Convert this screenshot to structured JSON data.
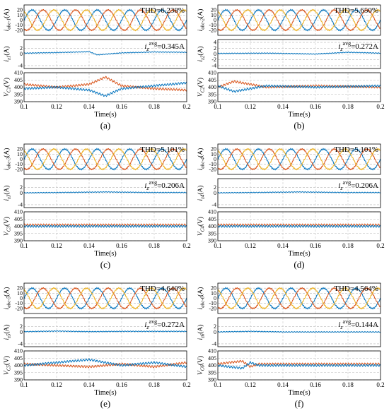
{
  "chart_data": [
    {
      "panel_label": "(a)",
      "type": "line",
      "x_axis": {
        "label": "Time(s)",
        "range": [
          0.1,
          0.2
        ],
        "ticks": [
          "0.1",
          "0.12",
          "0.14",
          "0.16",
          "0.18",
          "0.2"
        ]
      },
      "subplots": [
        {
          "ylabel": "i_abc-1(A)",
          "ylabel_main": "i",
          "ylabel_sub": "abc-1",
          "ylabel_unit": "(A)",
          "ylim": [
            -30,
            30
          ],
          "yticks": [
            -20,
            -10,
            0,
            10,
            20
          ],
          "annotation": "THD=6.238%",
          "series": [
            {
              "color": "#0072BD",
              "amplitude": 20,
              "frequency_hz": 50,
              "phase_deg": 0
            },
            {
              "color": "#D95319",
              "amplitude": 20,
              "frequency_hz": 50,
              "phase_deg": -120
            },
            {
              "color": "#EDB120",
              "amplitude": 20,
              "frequency_hz": 50,
              "phase_deg": 120
            }
          ]
        },
        {
          "ylabel": "i_z1(A)",
          "ylabel_main": "i",
          "ylabel_sub": "z1",
          "ylabel_unit": "(A)",
          "ylim": [
            -5,
            5
          ],
          "yticks": [
            -4,
            0,
            2
          ],
          "annotation_main": "i",
          "annotation_sub": "z",
          "annotation_sup": "avg",
          "annotation_value": "=0.345A",
          "series": [
            {
              "color": "#0072BD",
              "x": [
                0.1,
                0.12,
                0.14,
                0.145,
                0.16,
                0.18,
                0.2
              ],
              "y": [
                0.3,
                0.5,
                0.8,
                -0.3,
                0.4,
                0.7,
                0.6
              ]
            }
          ]
        },
        {
          "ylabel": "V_C1(V)",
          "ylabel_main": "V",
          "ylabel_sub": "C1",
          "ylabel_unit": "(V)",
          "ylim": [
            390,
            410
          ],
          "yticks": [
            390,
            395,
            400,
            405,
            410
          ],
          "series": [
            {
              "color": "#D95319",
              "x": [
                0.1,
                0.12,
                0.14,
                0.15,
                0.16,
                0.18,
                0.2
              ],
              "y": [
                402,
                400,
                402,
                407,
                401,
                399,
                398
              ]
            },
            {
              "color": "#0072BD",
              "x": [
                0.1,
                0.12,
                0.14,
                0.15,
                0.16,
                0.18,
                0.2
              ],
              "y": [
                399,
                400,
                398,
                394,
                399,
                401,
                403
              ]
            }
          ]
        }
      ]
    },
    {
      "panel_label": "(b)",
      "type": "line",
      "x_axis": {
        "label": "Time(s)",
        "range": [
          0.1,
          0.2
        ],
        "ticks": [
          "0.1",
          "0.12",
          "0.14",
          "0.16",
          "0.18",
          "0.2"
        ]
      },
      "subplots": [
        {
          "ylabel": "i_abc-2(A)",
          "ylabel_main": "i",
          "ylabel_sub": "abc-2",
          "ylabel_unit": "(A)",
          "ylim": [
            -30,
            30
          ],
          "yticks": [
            -20,
            -10,
            0,
            10,
            20
          ],
          "annotation": "THD=5.650%",
          "series": [
            {
              "color": "#0072BD",
              "amplitude": 20,
              "frequency_hz": 50,
              "phase_deg": 0
            },
            {
              "color": "#D95319",
              "amplitude": 20,
              "frequency_hz": 50,
              "phase_deg": -120
            },
            {
              "color": "#EDB120",
              "amplitude": 20,
              "frequency_hz": 50,
              "phase_deg": 120
            }
          ]
        },
        {
          "ylabel": "i_z2(A)",
          "ylabel_main": "i",
          "ylabel_sub": "z2",
          "ylabel_unit": "(A)",
          "ylim": [
            -5,
            5
          ],
          "yticks": [
            -4,
            -2,
            0,
            2,
            4
          ],
          "annotation_main": "i",
          "annotation_sub": "z",
          "annotation_sup": "avg",
          "annotation_value": "=0.272A",
          "series": [
            {
              "color": "#0072BD",
              "x": [
                0.1,
                0.13,
                0.16,
                0.18,
                0.2
              ],
              "y": [
                0.2,
                0.3,
                0.0,
                0.6,
                0.3
              ]
            }
          ]
        },
        {
          "ylabel": "V_C2(V)",
          "ylabel_main": "V",
          "ylabel_sub": "C2",
          "ylabel_unit": "(V)",
          "ylim": [
            390,
            410
          ],
          "yticks": [
            390,
            395,
            400,
            405,
            410
          ],
          "series": [
            {
              "color": "#D95319",
              "x": [
                0.1,
                0.11,
                0.13,
                0.16,
                0.2
              ],
              "y": [
                400,
                404,
                400,
                401,
                400
              ]
            },
            {
              "color": "#0072BD",
              "x": [
                0.1,
                0.11,
                0.13,
                0.16,
                0.2
              ],
              "y": [
                401,
                397,
                401,
                400,
                401
              ]
            }
          ]
        }
      ]
    },
    {
      "panel_label": "(c)",
      "type": "line",
      "x_axis": {
        "label": "Time(s)",
        "range": [
          0.1,
          0.2
        ],
        "ticks": [
          "0.1",
          "0.12",
          "0.14",
          "0.16",
          "0.18",
          "0.2"
        ]
      },
      "subplots": [
        {
          "ylabel": "i_abc-3(A)",
          "ylabel_main": "i",
          "ylabel_sub": "abc-3",
          "ylabel_unit": "(A)",
          "ylim": [
            -30,
            30
          ],
          "yticks": [
            -20,
            -10,
            0,
            10,
            20
          ],
          "annotation": "THD=5.101%",
          "series": [
            {
              "color": "#0072BD",
              "amplitude": 20,
              "frequency_hz": 50,
              "phase_deg": 0
            },
            {
              "color": "#D95319",
              "amplitude": 20,
              "frequency_hz": 50,
              "phase_deg": -120
            },
            {
              "color": "#EDB120",
              "amplitude": 20,
              "frequency_hz": 50,
              "phase_deg": 120
            }
          ]
        },
        {
          "ylabel": "i_z3(A)",
          "ylabel_main": "i",
          "ylabel_sub": "z3",
          "ylabel_unit": "(A)",
          "ylim": [
            -5,
            5
          ],
          "yticks": [
            -4,
            0,
            2
          ],
          "annotation_main": "i",
          "annotation_sub": "z",
          "annotation_sup": "avg",
          "annotation_value": "=0.206A",
          "series": [
            {
              "color": "#0072BD",
              "x": [
                0.1,
                0.12,
                0.15,
                0.18,
                0.2
              ],
              "y": [
                0.1,
                0.2,
                0.4,
                0.2,
                0.2
              ]
            }
          ]
        },
        {
          "ylabel": "V_C3(V)",
          "ylabel_main": "V",
          "ylabel_sub": "C3",
          "ylabel_unit": "(V)",
          "ylim": [
            390,
            410
          ],
          "yticks": [
            390,
            395,
            400,
            405,
            410
          ],
          "series": [
            {
              "color": "#D95319",
              "x": [
                0.1,
                0.2
              ],
              "y": [
                401,
                401
              ]
            },
            {
              "color": "#0072BD",
              "x": [
                0.1,
                0.2
              ],
              "y": [
                400,
                400
              ]
            }
          ]
        }
      ]
    },
    {
      "panel_label": "(d)",
      "type": "line",
      "x_axis": {
        "label": "Time(s)",
        "range": [
          0.1,
          0.2
        ],
        "ticks": [
          "0.1",
          "0.12",
          "0.14",
          "0.16",
          "0.18",
          "0.2"
        ]
      },
      "subplots": [
        {
          "ylabel": "i_abc-4(A)",
          "ylabel_main": "i",
          "ylabel_sub": "abc-4",
          "ylabel_unit": "(A)",
          "ylim": [
            -30,
            30
          ],
          "yticks": [
            -20,
            -10,
            0,
            10,
            20
          ],
          "annotation": "THD=5.101%",
          "series": [
            {
              "color": "#0072BD",
              "amplitude": 20,
              "frequency_hz": 50,
              "phase_deg": 0
            },
            {
              "color": "#D95319",
              "amplitude": 20,
              "frequency_hz": 50,
              "phase_deg": -120
            },
            {
              "color": "#EDB120",
              "amplitude": 20,
              "frequency_hz": 50,
              "phase_deg": 120
            }
          ]
        },
        {
          "ylabel": "i_z4(A)",
          "ylabel_main": "i",
          "ylabel_sub": "z4",
          "ylabel_unit": "(A)",
          "ylim": [
            -5,
            5
          ],
          "yticks": [
            -4,
            0,
            2
          ],
          "annotation_main": "i",
          "annotation_sub": "z",
          "annotation_sup": "avg",
          "annotation_value": "=0.206A",
          "series": [
            {
              "color": "#0072BD",
              "x": [
                0.1,
                0.12,
                0.15,
                0.18,
                0.2
              ],
              "y": [
                0.1,
                0.2,
                0.4,
                0.2,
                0.2
              ]
            }
          ]
        },
        {
          "ylabel": "V_C4(V)",
          "ylabel_main": "V",
          "ylabel_sub": "C4",
          "ylabel_unit": "(V)",
          "ylim": [
            390,
            410
          ],
          "yticks": [
            390,
            395,
            400,
            405,
            410
          ],
          "series": [
            {
              "color": "#D95319",
              "x": [
                0.1,
                0.2
              ],
              "y": [
                401,
                401
              ]
            },
            {
              "color": "#0072BD",
              "x": [
                0.1,
                0.2
              ],
              "y": [
                400,
                400
              ]
            }
          ]
        }
      ]
    },
    {
      "panel_label": "(e)",
      "type": "line",
      "x_axis": {
        "label": "Time(s)",
        "range": [
          0.1,
          0.2
        ],
        "ticks": [
          "0.1",
          "0.12",
          "0.14",
          "0.16",
          "0.18",
          "0.2"
        ]
      },
      "subplots": [
        {
          "ylabel": "i_abc-5(A)",
          "ylabel_main": "i",
          "ylabel_sub": "abc-5",
          "ylabel_unit": "(A)",
          "ylim": [
            -30,
            30
          ],
          "yticks": [
            -20,
            -10,
            0,
            10,
            20
          ],
          "annotation": "THD=4.640%",
          "series": [
            {
              "color": "#0072BD",
              "amplitude": 20,
              "frequency_hz": 50,
              "phase_deg": 0
            },
            {
              "color": "#D95319",
              "amplitude": 20,
              "frequency_hz": 50,
              "phase_deg": -120
            },
            {
              "color": "#EDB120",
              "amplitude": 20,
              "frequency_hz": 50,
              "phase_deg": 120
            }
          ]
        },
        {
          "ylabel": "i_z5(A)",
          "ylabel_main": "i",
          "ylabel_sub": "z5",
          "ylabel_unit": "(A)",
          "ylim": [
            -5,
            5
          ],
          "yticks": [
            -4,
            0,
            2
          ],
          "annotation_main": "i",
          "annotation_sub": "z",
          "annotation_sup": "avg",
          "annotation_value": "=0.272A",
          "series": [
            {
              "color": "#0072BD",
              "x": [
                0.1,
                0.12,
                0.14,
                0.16,
                0.2
              ],
              "y": [
                0.2,
                0.4,
                0.2,
                0.3,
                0.3
              ]
            }
          ]
        },
        {
          "ylabel": "V_C5(V)",
          "ylabel_main": "V",
          "ylabel_sub": "C5",
          "ylabel_unit": "(V)",
          "ylim": [
            390,
            410
          ],
          "yticks": [
            390,
            395,
            400,
            405,
            410
          ],
          "series": [
            {
              "color": "#D95319",
              "x": [
                0.1,
                0.14,
                0.16,
                0.18,
                0.2
              ],
              "y": [
                401,
                399,
                401,
                399,
                402
              ]
            },
            {
              "color": "#0072BD",
              "x": [
                0.1,
                0.14,
                0.16,
                0.18,
                0.2
              ],
              "y": [
                400,
                404,
                400,
                402,
                399
              ]
            }
          ]
        }
      ]
    },
    {
      "panel_label": "(f)",
      "type": "line",
      "x_axis": {
        "label": "Time(s)",
        "range": [
          0.1,
          0.2
        ],
        "ticks": [
          "0.1",
          "0.12",
          "0.14",
          "0.16",
          "0.18",
          "0.2"
        ]
      },
      "subplots": [
        {
          "ylabel": "i_abc-6(A)",
          "ylabel_main": "i",
          "ylabel_sub": "abc-6",
          "ylabel_unit": "(A)",
          "ylim": [
            -30,
            30
          ],
          "yticks": [
            -20,
            -10,
            0,
            10,
            20
          ],
          "annotation": "THD=4.564%",
          "series": [
            {
              "color": "#0072BD",
              "amplitude": 20,
              "frequency_hz": 50,
              "phase_deg": 0
            },
            {
              "color": "#D95319",
              "amplitude": 20,
              "frequency_hz": 50,
              "phase_deg": -120
            },
            {
              "color": "#EDB120",
              "amplitude": 20,
              "frequency_hz": 50,
              "phase_deg": 120
            }
          ]
        },
        {
          "ylabel": "i_z6(A)",
          "ylabel_main": "i",
          "ylabel_sub": "z6",
          "ylabel_unit": "(A)",
          "ylim": [
            -5,
            5
          ],
          "yticks": [
            -4,
            0,
            2
          ],
          "annotation_main": "i",
          "annotation_sub": "z",
          "annotation_sup": "avg",
          "annotation_value": "=0.144A",
          "series": [
            {
              "color": "#0072BD",
              "x": [
                0.1,
                0.12,
                0.14,
                0.16,
                0.18,
                0.2
              ],
              "y": [
                0.1,
                0.3,
                0.1,
                0.1,
                0.1,
                0.1
              ]
            }
          ]
        },
        {
          "ylabel": "V_C6(V)",
          "ylabel_main": "V",
          "ylabel_sub": "C6",
          "ylabel_unit": "(V)",
          "ylim": [
            390,
            410
          ],
          "yticks": [
            390,
            395,
            400,
            405,
            410
          ],
          "series": [
            {
              "color": "#D95319",
              "x": [
                0.1,
                0.115,
                0.12,
                0.125,
                0.14,
                0.2
              ],
              "y": [
                401,
                403,
                399,
                401,
                401,
                401
              ]
            },
            {
              "color": "#0072BD",
              "x": [
                0.1,
                0.115,
                0.12,
                0.125,
                0.14,
                0.2
              ],
              "y": [
                400,
                398,
                402,
                400,
                400,
                400
              ]
            }
          ]
        }
      ]
    }
  ]
}
